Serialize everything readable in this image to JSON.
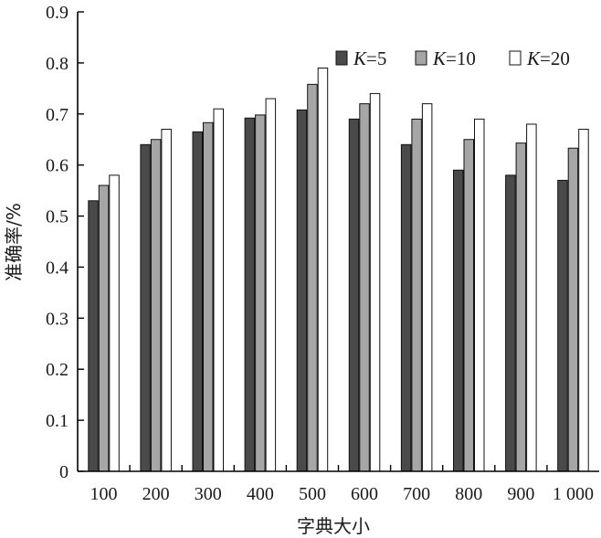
{
  "chart_data": {
    "type": "bar",
    "xlabel": "字典大小",
    "ylabel": "准确率/%",
    "ylim": [
      0,
      0.9
    ],
    "yticks": [
      "0",
      "0.1",
      "0.2",
      "0.3",
      "0.4",
      "0.5",
      "0.6",
      "0.7",
      "0.8",
      "0.9"
    ],
    "categories": [
      "100",
      "200",
      "300",
      "400",
      "500",
      "600",
      "700",
      "800",
      "900",
      "1 000"
    ],
    "series": [
      {
        "name": "K=5",
        "name_var": "K",
        "name_rest": "=5",
        "color": "#4a4a4a",
        "values": [
          0.53,
          0.64,
          0.665,
          0.692,
          0.708,
          0.69,
          0.64,
          0.59,
          0.58,
          0.57
        ]
      },
      {
        "name": "K=10",
        "name_var": "K",
        "name_rest": "=10",
        "color": "#a6a6a6",
        "values": [
          0.56,
          0.65,
          0.683,
          0.698,
          0.758,
          0.72,
          0.69,
          0.65,
          0.643,
          0.633
        ]
      },
      {
        "name": "K=20",
        "name_var": "K",
        "name_rest": "=20",
        "color": "#ffffff",
        "values": [
          0.58,
          0.67,
          0.71,
          0.73,
          0.79,
          0.74,
          0.72,
          0.69,
          0.68,
          0.67
        ]
      }
    ],
    "grid": false,
    "legend": "top-right"
  }
}
